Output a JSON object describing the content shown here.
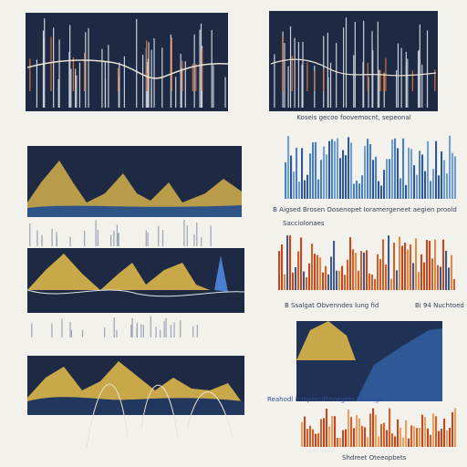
{
  "panels": [
    {
      "caption": "Koseis gecoo foovemocnt, sepeonal"
    },
    {
      "caption": "B Aigsed Brosen Oosenopet Ioramergeneet aegien proold"
    },
    {
      "caption": "Sacciolonaes"
    },
    {
      "caption": "B Ssalgat Obvenndes lung fid"
    },
    {
      "caption": "Bi 94 Nuchtoed"
    },
    {
      "caption": "Reahodl ir Ioprocdlinnegets Teadsge"
    },
    {
      "caption": "Shdreet Oteeopbets"
    }
  ]
}
